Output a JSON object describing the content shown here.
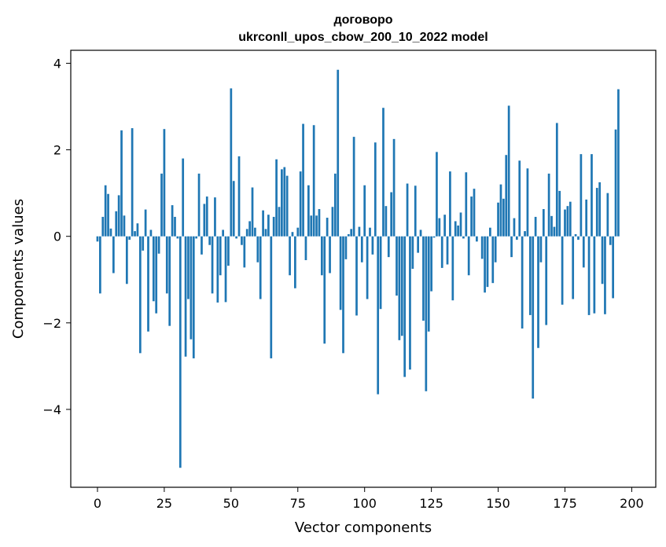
{
  "chart_data": {
    "type": "bar",
    "title_line1": "договоро",
    "title_line2": "ukrconll_upos_cbow_200_10_2022 model",
    "xlabel": "Vector components",
    "ylabel": "Components values",
    "xlim": [
      -10,
      209
    ],
    "ylim": [
      -5.8,
      4.3
    ],
    "xticks": [
      0,
      25,
      50,
      75,
      100,
      125,
      150,
      175,
      200
    ],
    "xtick_labels": [
      "0",
      "25",
      "50",
      "75",
      "100",
      "125",
      "150",
      "175",
      "200"
    ],
    "yticks": [
      -4,
      -2,
      0,
      2,
      4
    ],
    "ytick_labels": [
      "−4",
      "−2",
      "0",
      "2",
      "4"
    ],
    "grid": false,
    "bar_color": "#1f77b4",
    "values": [
      -0.12,
      -1.32,
      0.45,
      1.18,
      0.98,
      0.18,
      -0.85,
      0.58,
      0.95,
      2.45,
      0.48,
      -1.1,
      -0.08,
      2.5,
      0.12,
      0.3,
      -2.7,
      -0.33,
      0.62,
      -2.2,
      0.15,
      -1.5,
      -1.78,
      -0.4,
      1.45,
      2.48,
      -1.32,
      -2.07,
      0.72,
      0.45,
      -0.05,
      -5.35,
      1.8,
      -2.78,
      -1.45,
      -2.38,
      -2.82,
      -0.05,
      1.45,
      -0.42,
      0.75,
      0.92,
      -0.2,
      -1.32,
      0.9,
      -1.53,
      -0.9,
      0.15,
      -1.52,
      -0.68,
      3.42,
      1.28,
      -0.05,
      1.85,
      -0.2,
      -0.72,
      0.17,
      0.35,
      1.13,
      0.2,
      -0.6,
      -1.45,
      0.6,
      0.17,
      0.5,
      -2.82,
      0.45,
      1.78,
      0.68,
      1.55,
      1.6,
      1.4,
      -0.9,
      0.1,
      -1.2,
      0.2,
      1.5,
      2.6,
      -0.55,
      1.18,
      0.48,
      2.57,
      0.48,
      0.63,
      -0.9,
      -2.48,
      0.43,
      -0.85,
      0.68,
      1.45,
      3.85,
      -1.7,
      -2.7,
      -0.53,
      0.05,
      0.17,
      2.3,
      -1.83,
      0.22,
      -0.6,
      1.18,
      -1.45,
      0.2,
      -0.42,
      2.17,
      -3.65,
      -1.68,
      2.97,
      0.7,
      -0.48,
      1.02,
      2.25,
      -1.37,
      -2.4,
      -2.3,
      -3.25,
      1.22,
      -3.08,
      -0.75,
      1.17,
      -0.38,
      0.15,
      -1.95,
      -3.58,
      -2.2,
      -1.27,
      -0.03,
      1.95,
      0.42,
      -0.73,
      0.5,
      -0.65,
      1.5,
      -1.48,
      0.35,
      0.25,
      0.55,
      -0.05,
      1.48,
      -0.9,
      0.92,
      1.1,
      -0.12,
      0.0,
      -0.52,
      -1.3,
      -1.17,
      0.2,
      -1.08,
      -0.6,
      0.78,
      1.2,
      0.87,
      1.88,
      3.02,
      -0.48,
      0.42,
      -0.08,
      1.75,
      -2.13,
      0.12,
      1.57,
      -1.82,
      -3.75,
      0.45,
      -2.58,
      -0.6,
      0.63,
      -2.05,
      1.45,
      0.47,
      0.22,
      2.62,
      1.05,
      -1.58,
      0.62,
      0.7,
      0.8,
      -1.45,
      0.05,
      -0.08,
      1.9,
      -0.72,
      0.85,
      -1.82,
      1.9,
      -1.78,
      1.12,
      1.25,
      -1.1,
      -1.8,
      1.0,
      -0.2,
      -1.43,
      2.47,
      3.4
    ]
  }
}
